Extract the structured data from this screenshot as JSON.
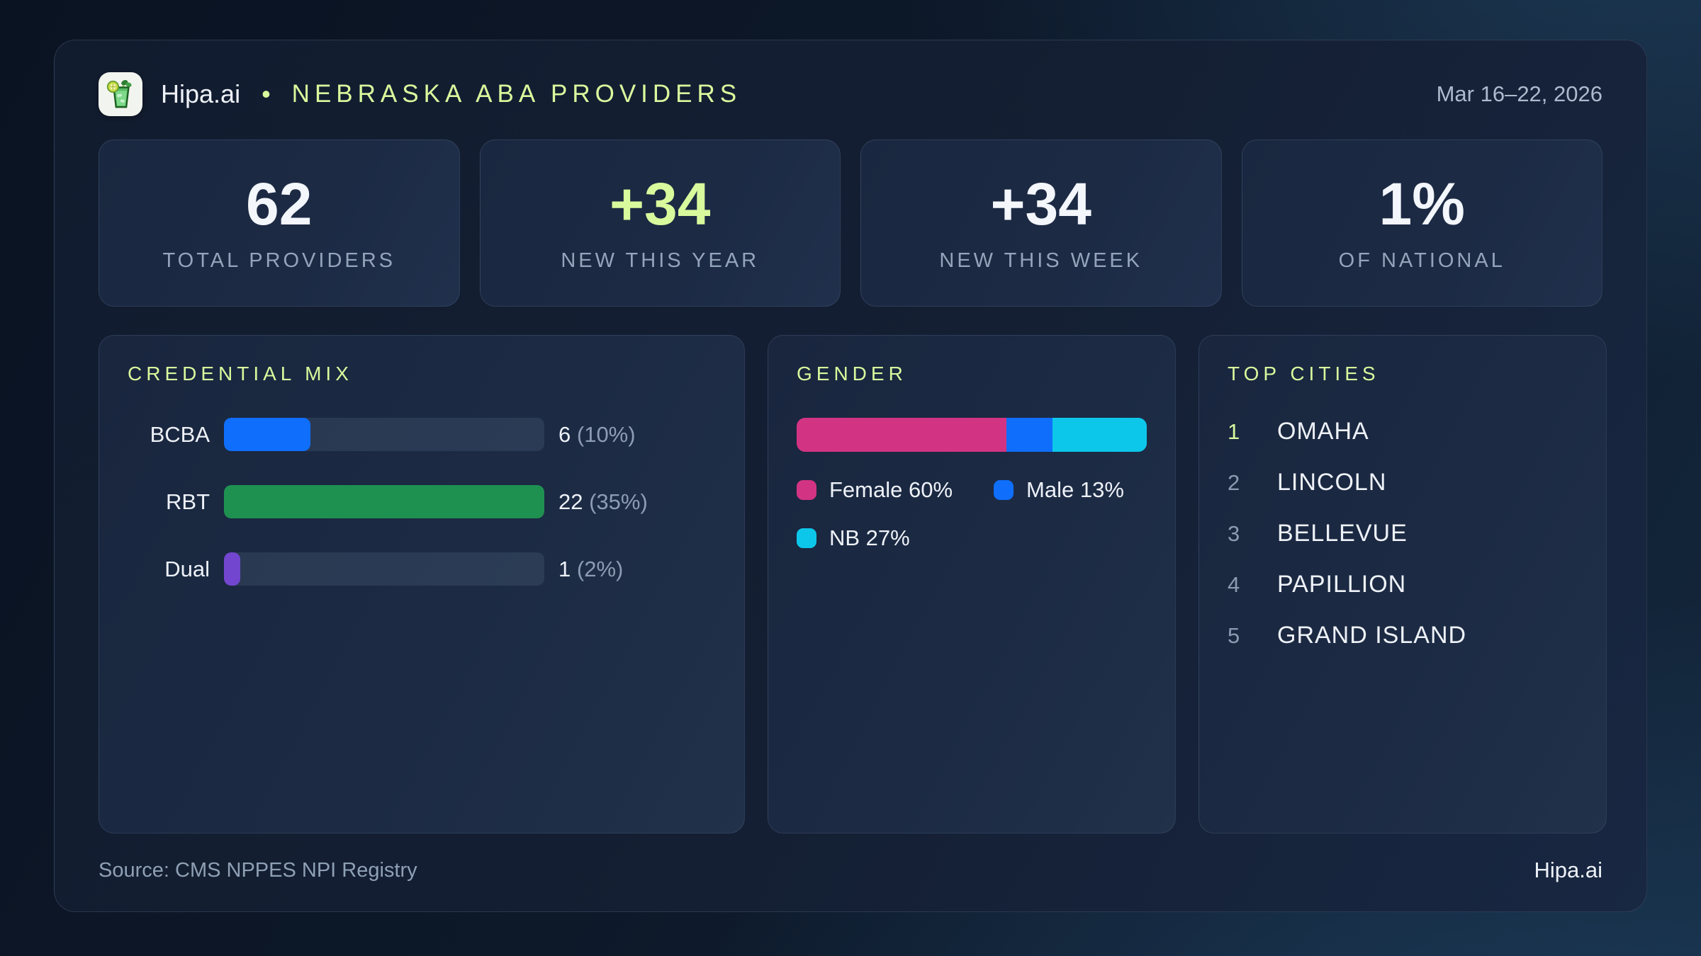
{
  "header": {
    "brand": "Hipa.ai",
    "separator": "•",
    "title": "NEBRASKA ABA PROVIDERS",
    "date_range": "Mar 16–22, 2026",
    "logo_icon": "mojito-glass-icon"
  },
  "stats": [
    {
      "value": "62",
      "label": "TOTAL PROVIDERS",
      "highlight": false
    },
    {
      "value": "+34",
      "label": "NEW THIS YEAR",
      "highlight": true
    },
    {
      "value": "+34",
      "label": "NEW THIS WEEK",
      "highlight": false
    },
    {
      "value": "1%",
      "label": "OF NATIONAL",
      "highlight": false
    }
  ],
  "panels": {
    "credentials": {
      "title": "CREDENTIAL MIX",
      "rows": [
        {
          "label": "BCBA",
          "value": "6",
          "pct": "(10%)",
          "fill_pct": 27,
          "color": "#0f6efb"
        },
        {
          "label": "RBT",
          "value": "22",
          "pct": "(35%)",
          "fill_pct": 100,
          "color": "#1e9150"
        },
        {
          "label": "Dual",
          "value": "1",
          "pct": "(2%)",
          "fill_pct": 5,
          "color": "#7346d0"
        }
      ]
    },
    "gender": {
      "title": "GENDER",
      "segments": [
        {
          "name": "Female",
          "pct": 60,
          "display": "Female 60%",
          "color": "#d23483"
        },
        {
          "name": "Male",
          "pct": 13,
          "display": "Male 13%",
          "color": "#0f6efb"
        },
        {
          "name": "NB",
          "pct": 27,
          "display": "NB 27%",
          "color": "#0dc7ea"
        }
      ]
    },
    "cities": {
      "title": "TOP CITIES",
      "items": [
        {
          "rank": "1",
          "name": "OMAHA"
        },
        {
          "rank": "2",
          "name": "LINCOLN"
        },
        {
          "rank": "3",
          "name": "BELLEVUE"
        },
        {
          "rank": "4",
          "name": "PAPILLION"
        },
        {
          "rank": "5",
          "name": "GRAND ISLAND"
        }
      ]
    }
  },
  "footer": {
    "source": "Source: CMS NPPES NPI Registry",
    "brand": "Hipa.ai"
  },
  "colors": {
    "accent_lime": "#d9f99d",
    "blue": "#0f6efb",
    "green": "#1e9150",
    "purple": "#7346d0",
    "pink": "#d23483",
    "cyan": "#0dc7ea",
    "card_bg": "#1b2840",
    "page_bg": "#0d1829"
  },
  "chart_data": [
    {
      "type": "bar",
      "orientation": "horizontal",
      "title": "CREDENTIAL MIX",
      "categories": [
        "BCBA",
        "RBT",
        "Dual"
      ],
      "values": [
        6,
        22,
        1
      ],
      "value_labels": [
        "6 (10%)",
        "22 (35%)",
        "1 (2%)"
      ],
      "percent_of_total": [
        10,
        35,
        2
      ],
      "bar_colors": [
        "#0f6efb",
        "#1e9150",
        "#7346d0"
      ],
      "xlim": [
        0,
        22
      ],
      "grid": false,
      "legend_position": "none"
    },
    {
      "type": "bar",
      "subtype": "stacked-horizontal-100pct",
      "title": "GENDER",
      "series": [
        {
          "name": "Female",
          "values": [
            60
          ],
          "color": "#d23483"
        },
        {
          "name": "Male",
          "values": [
            13
          ],
          "color": "#0f6efb"
        },
        {
          "name": "NB",
          "values": [
            27
          ],
          "color": "#0dc7ea"
        }
      ],
      "unit": "%",
      "legend_position": "below",
      "legend_entries": [
        "Female 60%",
        "Male 13%",
        "NB 27%"
      ]
    },
    {
      "type": "table",
      "title": "TOP CITIES",
      "columns": [
        "rank",
        "city"
      ],
      "rows": [
        [
          1,
          "OMAHA"
        ],
        [
          2,
          "LINCOLN"
        ],
        [
          3,
          "BELLEVUE"
        ],
        [
          4,
          "PAPILLION"
        ],
        [
          5,
          "GRAND ISLAND"
        ]
      ]
    }
  ]
}
